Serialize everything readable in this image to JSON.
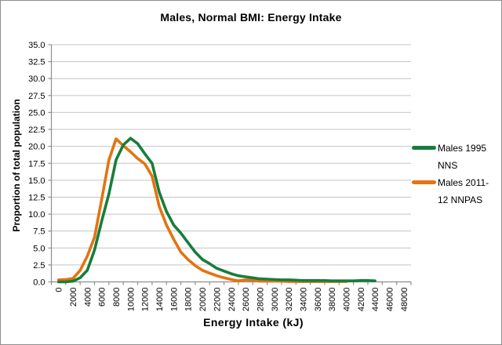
{
  "chart": {
    "title": "Males, Normal BMI: Energy Intake"
  },
  "style": {
    "gridline_color": "#c4c4c4",
    "axis_color": "#8e8e8e",
    "text_color": "#000000",
    "border_color": "#8f8f8f",
    "background": "#ffffff"
  },
  "chart_data": {
    "type": "line",
    "title": "Males, Normal BMI: Energy Intake",
    "xlabel": "Energy Intake (kJ)",
    "ylabel": "Proportion of total population",
    "xlim": [
      0,
      48000
    ],
    "ylim": [
      0,
      35
    ],
    "y_tick_step": 2.5,
    "y_tick_labels": [
      "0.0",
      "2.5",
      "5.0",
      "7.5",
      "10.0",
      "12.5",
      "15.0",
      "17.5",
      "20.0",
      "22.5",
      "25.0",
      "27.5",
      "30.0",
      "32.5",
      "35.0"
    ],
    "x_tick_labels": [
      "0",
      "2000",
      "4000",
      "6000",
      "8000",
      "10000",
      "12000",
      "14000",
      "16000",
      "18000",
      "20000",
      "22000",
      "24000",
      "26000",
      "28000",
      "30000",
      "32000",
      "34000",
      "36000",
      "38000",
      "40000",
      "42000",
      "44000",
      "46000",
      "48000"
    ],
    "x_step": 1000,
    "grid": "horizontal",
    "legend_position": "right",
    "series": [
      {
        "name": "Males 1995 NNS",
        "color": "#177d3b",
        "values": [
          0,
          0,
          0.1,
          0.6,
          1.7,
          4.7,
          9.0,
          13.0,
          18.0,
          20.2,
          21.2,
          20.4,
          18.9,
          17.5,
          13.2,
          10.4,
          8.4,
          7.2,
          5.8,
          4.4,
          3.3,
          2.7,
          2.0,
          1.6,
          1.2,
          0.9,
          0.75,
          0.6,
          0.45,
          0.4,
          0.35,
          0.3,
          0.3,
          0.25,
          0.2,
          0.2,
          0.2,
          0.2,
          0.15,
          0.15,
          0.15,
          0.15,
          0.2,
          0.2,
          0.15,
          null,
          null,
          null,
          null
        ]
      },
      {
        "name": "Males 2011-12 NNPAS",
        "color": "#e5730f",
        "values": [
          0.3,
          0.35,
          0.5,
          1.7,
          3.8,
          6.6,
          12.2,
          18.0,
          21.1,
          20.1,
          19.2,
          18.2,
          17.4,
          15.6,
          11.1,
          8.4,
          6.3,
          4.4,
          3.3,
          2.4,
          1.7,
          1.3,
          0.9,
          0.6,
          0.35,
          0.15,
          0.3,
          0.25,
          0.1,
          0.1,
          0.1,
          0.1,
          0.05,
          0.05,
          0.05,
          0.05,
          0.05,
          0.05,
          0.05,
          0.05,
          0.05,
          null,
          null,
          null,
          null,
          null,
          null,
          null,
          null
        ]
      }
    ]
  }
}
